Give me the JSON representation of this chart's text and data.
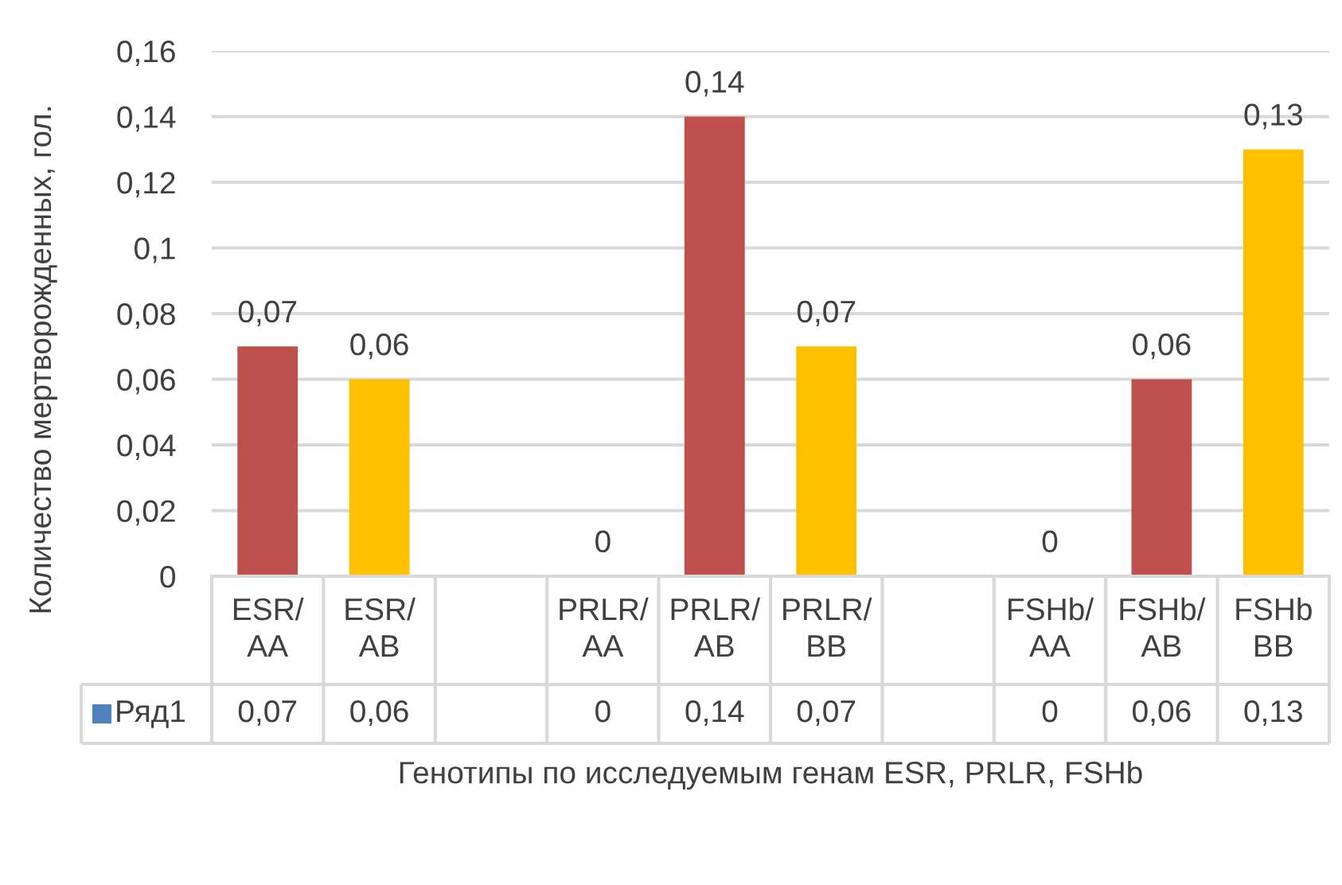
{
  "chart_data": {
    "type": "bar",
    "categories": [
      "ESR/\nAA",
      "ESR/\nAB",
      null,
      "PRLR/\nAA",
      "PRLR/\nAB",
      "PRLR/\nBB",
      null,
      "FSHb/\nAA",
      "FSHb/\nAB",
      "FSHb\nBB"
    ],
    "series": [
      {
        "name": "Ряд1",
        "color": "#4f81bd",
        "colors": [
          "#c0504d",
          "#ffc000",
          null,
          "#c0504d",
          "#c0504d",
          "#ffc000",
          null,
          "#c0504d",
          "#c0504d",
          "#ffc000"
        ],
        "values": [
          0.07,
          0.06,
          null,
          0,
          0.14,
          0.07,
          null,
          0,
          0.06,
          0.13
        ],
        "value_labels": [
          "0,07",
          "0,06",
          null,
          "0",
          "0,14",
          "0,07",
          null,
          "0",
          "0,06",
          "0,13"
        ]
      }
    ],
    "xlabel": "Генотипы по исследуемым генам ESR, PRLR, FSHb",
    "ylabel": "Количество мертворожденных, гол.",
    "ylim": [
      0,
      0.16
    ],
    "yticks": [
      0,
      {
        "value": 0.02,
        "label": "0,02"
      },
      {
        "value": 0.04,
        "label": "0,04"
      },
      {
        "value": 0.06,
        "label": "0,06"
      },
      {
        "value": 0.08,
        "label": "0,08"
      },
      {
        "value": 0.1,
        "label": "0,1"
      },
      {
        "value": 0.12,
        "label": "0,12"
      },
      {
        "value": 0.14,
        "label": "0,14"
      },
      {
        "value": 0.16,
        "label": "0,16"
      }
    ],
    "grid": "y",
    "legend": "bottom left"
  }
}
